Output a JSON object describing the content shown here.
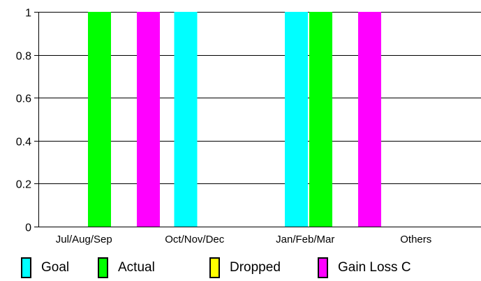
{
  "chart_data": {
    "type": "bar",
    "categories": [
      "Jul/Aug/Sep",
      "Oct/Nov/Dec",
      "Jan/Feb/Mar",
      "Others"
    ],
    "series": [
      {
        "name": "Goal",
        "color": "#00ffff",
        "values": [
          0,
          1,
          1,
          0
        ]
      },
      {
        "name": "Actual",
        "color": "#00ff00",
        "values": [
          1,
          0,
          1,
          0
        ]
      },
      {
        "name": "Dropped",
        "color": "#ffff00",
        "values": [
          0,
          0,
          0,
          0
        ]
      },
      {
        "name": "Gain Loss C",
        "color": "#ff00ff",
        "values": [
          1,
          0,
          1,
          0
        ]
      }
    ],
    "ylim": [
      0,
      1
    ],
    "yticks": [
      "0",
      "0.2",
      "0.4",
      "0.6",
      "0.8",
      "1"
    ],
    "title": "",
    "xlabel": "",
    "ylabel": "",
    "grid": true,
    "legend_position": "bottom"
  }
}
